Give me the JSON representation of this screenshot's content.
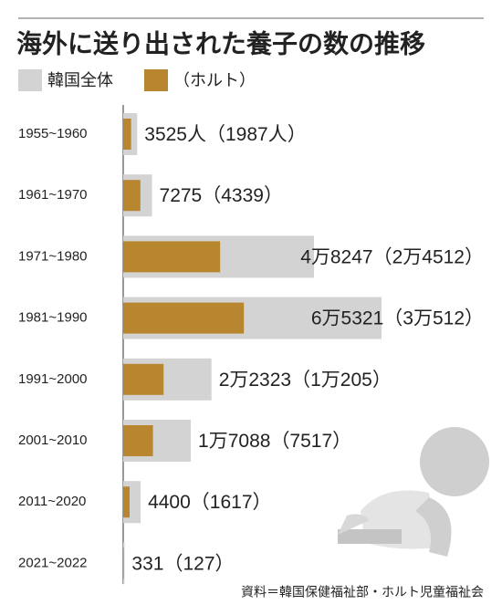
{
  "chart_data": {
    "type": "overlap-hbar",
    "title": "海外に送り出された養子の数の推移",
    "categories": [
      "1955~1960",
      "1961~1970",
      "1971~1980",
      "1981~1990",
      "1991~2000",
      "2001~2010",
      "2011~2020",
      "2021~2022"
    ],
    "series": [
      {
        "name": "韓国全体",
        "color": "#d3d3d3",
        "values": [
          3525,
          7275,
          48247,
          65321,
          22323,
          17088,
          4400,
          331
        ],
        "value_labels": [
          "3525人",
          "7275",
          "4万8247",
          "6万5321",
          "2万2323",
          "1万7088",
          "4400",
          "331"
        ]
      },
      {
        "name": "（ホルト）",
        "color": "#b8862f",
        "values": [
          1987,
          4339,
          24512,
          30512,
          10205,
          7517,
          1617,
          127
        ],
        "value_labels": [
          "（1987人）",
          "（4339）",
          "（2万4512）",
          "（3万512）",
          "（1万205）",
          "（7517）",
          "（1617）",
          "（127）"
        ]
      }
    ],
    "source": "資料＝韓国保健福祉部・ホルト児童福祉会"
  }
}
